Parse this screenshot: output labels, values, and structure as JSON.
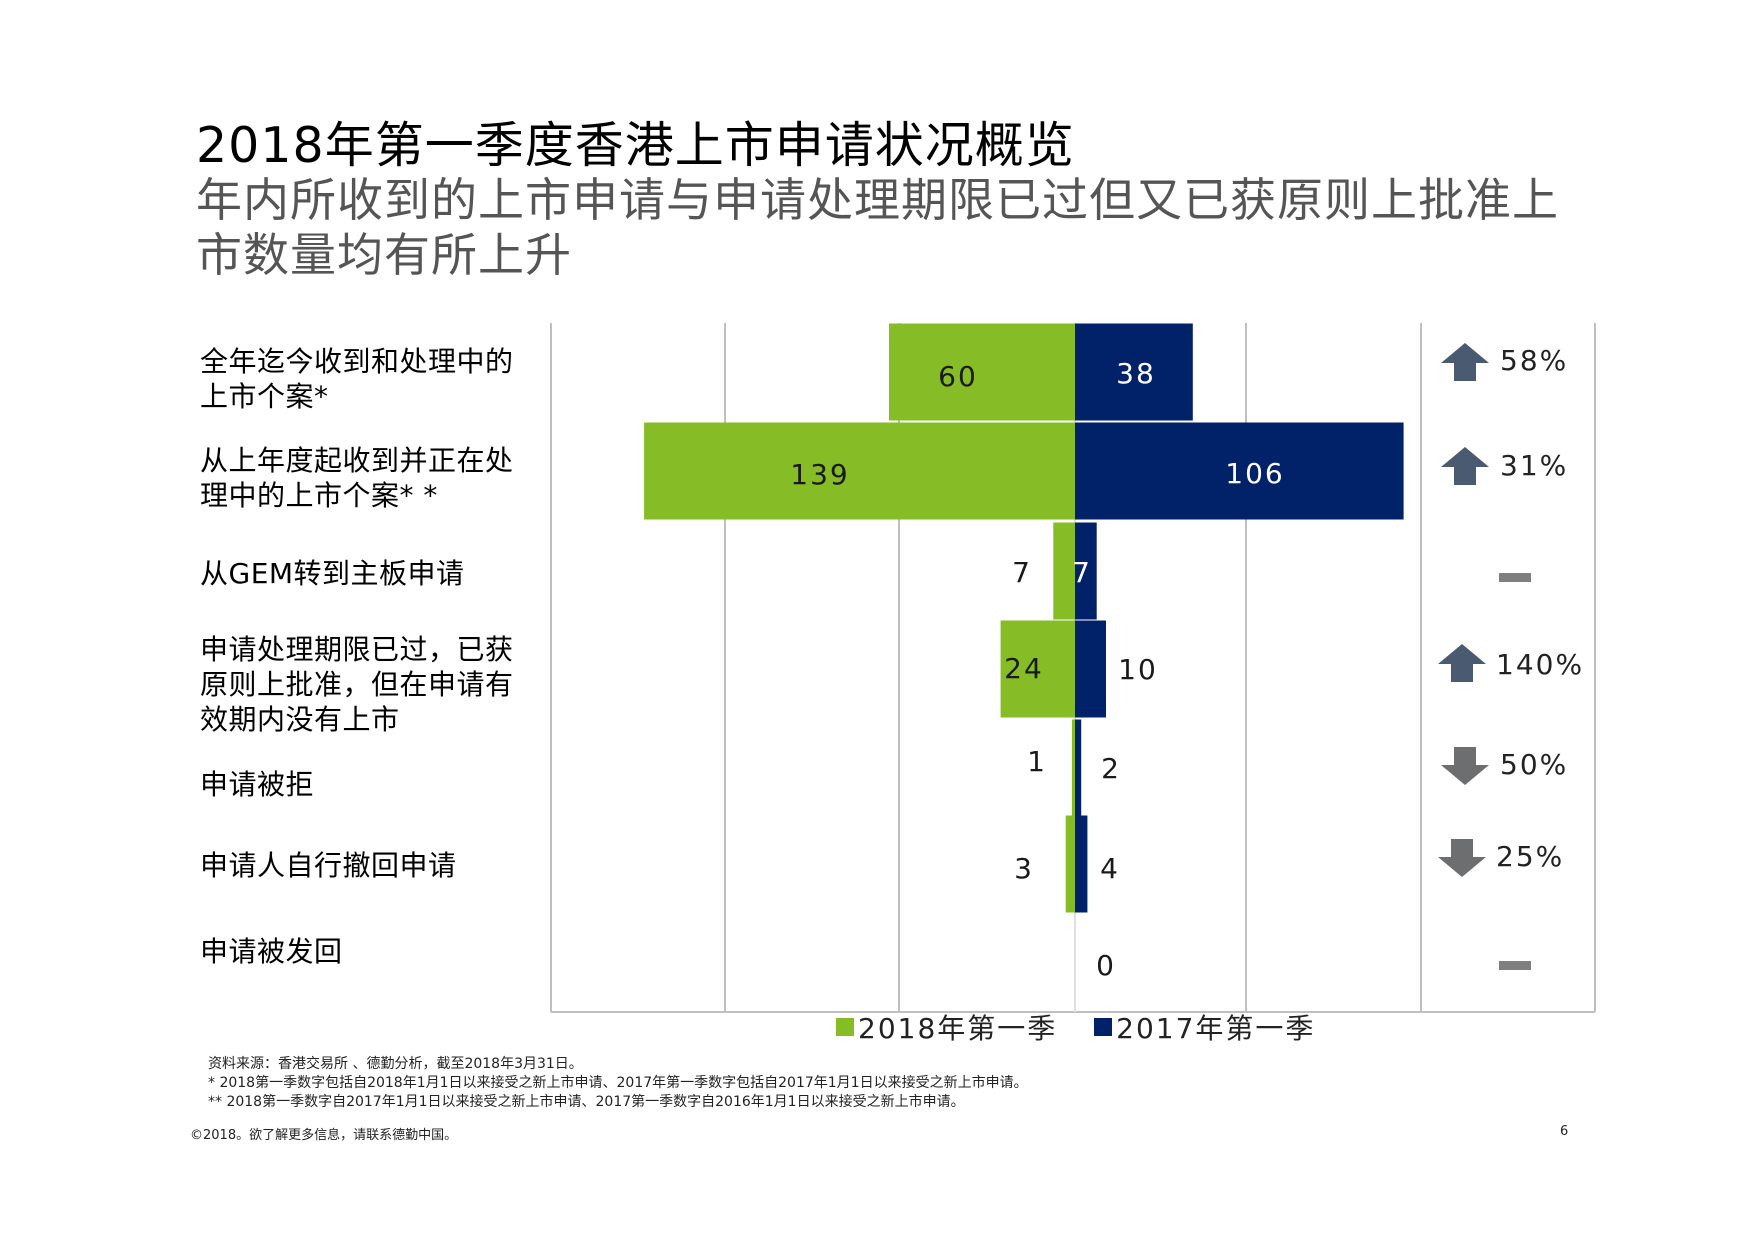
{
  "title": "2018年第一季度香港上市申请状况概览",
  "subtitle": "年内所收到的上市申请与申请处理期限已过但又已获原则上批准上市数量均有所上升",
  "colors": {
    "series_2018": "#86BC25",
    "series_2017": "#012169",
    "arrow": "#4A5A70",
    "arrow_down": "#6D6E70",
    "dash": "#7F7F7F"
  },
  "chart_data": {
    "type": "bar",
    "orientation": "horizontal-diverging",
    "categories": [
      "全年迄今收到和处理中的上市个案*",
      "从上年度起收到并正在处理中的上市个案* *",
      "从GEM转到主板申请",
      "申请处理期限已过，已获原则上批准，但在申请有效期内没有上市",
      "申请被拒",
      "申请人自行撤回申请",
      "申请被发回"
    ],
    "series": [
      {
        "name": "2018年第一季",
        "values": [
          60,
          139,
          7,
          24,
          1,
          3,
          null
        ]
      },
      {
        "name": "2017年第一季",
        "values": [
          38,
          106,
          7,
          10,
          2,
          4,
          0
        ]
      }
    ],
    "value_labels": {
      "2018": [
        "60",
        "139",
        "7",
        "24",
        "1",
        "3",
        ""
      ],
      "2017": [
        "38",
        "106",
        "7",
        "10",
        "2",
        "4",
        "0"
      ]
    },
    "changes": [
      {
        "direction": "up",
        "label": "58%"
      },
      {
        "direction": "up",
        "label": "31%"
      },
      {
        "direction": "none",
        "label": ""
      },
      {
        "direction": "up",
        "label": "140%"
      },
      {
        "direction": "down",
        "label": "50%"
      },
      {
        "direction": "down",
        "label": "25%"
      },
      {
        "direction": "none",
        "label": ""
      }
    ],
    "xlim": [
      -150,
      150
    ],
    "grid": true,
    "legend_position": "bottom"
  },
  "notes": {
    "source": "资料来源：香港交易所 、德勤分析，截至2018年3月31日。",
    "note1": "* 2018第一季数字包括自2018年1月1日以来接受之新上市申请、2017年第一季数字包括自2017年1月1日以来接受之新上市申请。",
    "note2": "** 2018第一季数字自2017年1月1日以来接受之新上市申请、2017第一季数字自2016年1月1日以来接受之新上市申请。"
  },
  "footer": {
    "copyright": "©2018。欲了解更多信息，请联系德勤中国。",
    "page": "6"
  }
}
